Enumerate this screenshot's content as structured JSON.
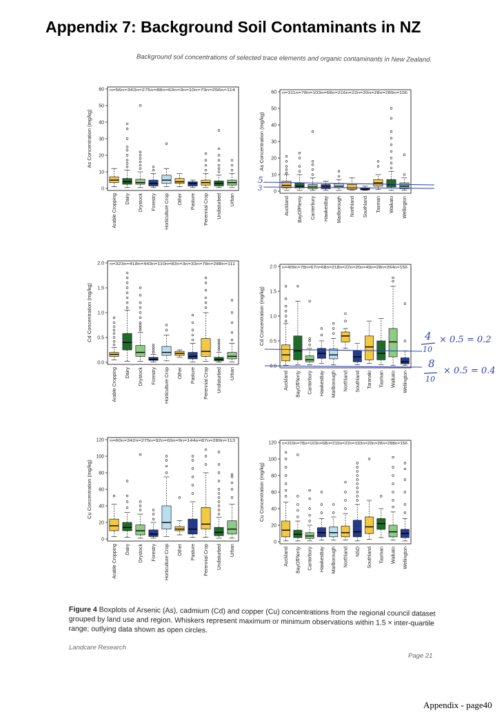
{
  "page": {
    "title": "Appendix 7: Background Soil Contaminants in NZ",
    "subtitle": "Background soil concentrations of selected trace elements and organic contaminants in New Zealand.",
    "caption_bold": "Figure 4",
    "caption_text": "Boxplots of Arsenic (As), cadmium (Cd) and copper (Cu) concentrations from the regional council dataset grouped by land use and region. Whiskers represent maximum or minimum observations within 1.5 × inter-quartile range; outlying data shown as open circles.",
    "footer_left": "Landcare Research",
    "footer_right": "Page 21",
    "page_number": "Appendix - page40"
  },
  "annotations": {
    "as_tick_a": "5",
    "as_tick_b": "3",
    "eq1_num": "4",
    "eq1_den": "10",
    "eq1_rest": "× 0.5 = 0.2",
    "eq2_num": "8",
    "eq2_den": "10",
    "eq2_rest": "× 0.5 = 0.4",
    "ink_color": "#2a3fb0"
  },
  "colors": {
    "yellow": "#f5c842",
    "darkgreen": "#1e6b2a",
    "lightgreen": "#8dcb86",
    "navy": "#243a8c",
    "lightblue": "#b9def0"
  },
  "chart_data": [
    {
      "id": "as_landuse",
      "type": "box",
      "ylabel": "As Concentration (mg/kg)",
      "ylim": [
        0,
        60
      ],
      "yticks": [
        0,
        10,
        20,
        30,
        40,
        50,
        60
      ],
      "n_labels": [
        "n=56",
        "n=343",
        "n=275",
        "n=88",
        "n=63",
        "n=3",
        "n=10",
        "n=79",
        "n=256",
        "n=114"
      ],
      "categories": [
        "Arable Cropping",
        "Dairy",
        "Drystock",
        "Forestry",
        "Horticulture Crop",
        "Other",
        "Pasture",
        "Perennial Crop",
        "Undisturbed",
        "Urban"
      ],
      "colors": [
        "yellow",
        "darkgreen",
        "lightgreen",
        "navy",
        "lightblue",
        "yellow",
        "navy",
        "yellow",
        "darkgreen",
        "lightgreen"
      ],
      "boxes": [
        {
          "lo": 1,
          "q1": 3.5,
          "med": 5,
          "q3": 7,
          "hi": 12,
          "out": []
        },
        {
          "lo": 0.5,
          "q1": 2.5,
          "med": 4,
          "q3": 6,
          "hi": 11,
          "out": [
            13,
            15,
            17,
            20,
            23,
            25,
            30,
            36,
            39
          ]
        },
        {
          "lo": 0.5,
          "q1": 2.5,
          "med": 3.5,
          "q3": 5.5,
          "hi": 10,
          "out": [
            12,
            14,
            16,
            18,
            20,
            22,
            50
          ]
        },
        {
          "lo": 0.5,
          "q1": 1.5,
          "med": 3,
          "q3": 5,
          "hi": 9,
          "out": [
            11,
            13
          ]
        },
        {
          "lo": 1,
          "q1": 3,
          "med": 5,
          "q3": 8,
          "hi": 12,
          "out": [
            27
          ]
        },
        {
          "lo": 1,
          "q1": 3,
          "med": 4,
          "q3": 6,
          "hi": 9,
          "out": []
        },
        {
          "lo": 0.5,
          "q1": 1.5,
          "med": 3,
          "q3": 4,
          "hi": 5,
          "out": []
        },
        {
          "lo": 0.5,
          "q1": 2,
          "med": 3.5,
          "q3": 5,
          "hi": 9,
          "out": [
            11,
            14,
            17,
            21
          ]
        },
        {
          "lo": 0.5,
          "q1": 1.5,
          "med": 3,
          "q3": 4.5,
          "hi": 8,
          "out": [
            10,
            12,
            14,
            17,
            20,
            24,
            35
          ]
        },
        {
          "lo": 0.5,
          "q1": 2,
          "med": 3.5,
          "q3": 5,
          "hi": 9,
          "out": [
            11,
            14,
            17
          ]
        }
      ]
    },
    {
      "id": "as_region",
      "type": "box",
      "ylabel": "As Concentration (mg/kg)",
      "ylim": [
        0,
        60
      ],
      "yticks": [
        0,
        10,
        20,
        30,
        40,
        50,
        60
      ],
      "n_labels": [
        "n=311",
        "n=78",
        "n=103",
        "n=68",
        "n=216",
        "n=22",
        "n=20",
        "n=28",
        "n=289",
        "n=156"
      ],
      "categories": [
        "Auckland",
        "BayOfPlenty",
        "Canterbury",
        "HawkesBay",
        "Marlborough",
        "Northland",
        "Southland",
        "Tasman",
        "Waikato",
        "Wellington"
      ],
      "colors": [
        "yellow",
        "darkgreen",
        "lightgreen",
        "navy",
        "lightblue",
        "yellow",
        "navy",
        "yellow",
        "darkgreen",
        "lightgreen"
      ],
      "boxes": [
        {
          "lo": 0.5,
          "q1": 2,
          "med": 3.5,
          "q3": 6,
          "hi": 10,
          "out": [
            11,
            13,
            15,
            18,
            21
          ]
        },
        {
          "lo": 0.5,
          "q1": 2,
          "med": 3,
          "q3": 5,
          "hi": 10,
          "out": [
            12,
            15,
            20,
            23
          ]
        },
        {
          "lo": 0.5,
          "q1": 1.5,
          "med": 2.5,
          "q3": 4,
          "hi": 8,
          "out": [
            10,
            13,
            16,
            18,
            36
          ]
        },
        {
          "lo": 0.5,
          "q1": 1.5,
          "med": 2.5,
          "q3": 4,
          "hi": 6,
          "out": []
        },
        {
          "lo": 0.5,
          "q1": 2,
          "med": 3,
          "q3": 4.5,
          "hi": 7,
          "out": [
            9,
            12
          ]
        },
        {
          "lo": 0.5,
          "q1": 1,
          "med": 2,
          "q3": 4,
          "hi": 8,
          "out": []
        },
        {
          "lo": 0.5,
          "q1": 0.8,
          "med": 1.2,
          "q3": 2,
          "hi": 3,
          "out": []
        },
        {
          "lo": 1,
          "q1": 3,
          "med": 5,
          "q3": 7,
          "hi": 10,
          "out": [
            15,
            18
          ]
        },
        {
          "lo": 0.5,
          "q1": 2.5,
          "med": 4,
          "q3": 7,
          "hi": 12,
          "out": [
            14,
            17,
            20,
            24,
            28,
            32,
            36,
            44,
            50
          ]
        },
        {
          "lo": 0.5,
          "q1": 1.5,
          "med": 3,
          "q3": 5,
          "hi": 8,
          "out": [
            10,
            22
          ]
        }
      ]
    },
    {
      "id": "cd_landuse",
      "type": "box",
      "ylabel": "Cd Concentration (mg/kg)",
      "ylim": [
        0,
        2.0
      ],
      "yticks": [
        0.0,
        0.5,
        1.0,
        1.5,
        2.0
      ],
      "n_labels": [
        "n=323",
        "n=418",
        "n=443",
        "n=110",
        "n=83",
        "n=3",
        "n=33",
        "n=78",
        "n=288",
        "n=111"
      ],
      "categories": [
        "Arable Cropping",
        "Dairy",
        "Drystock",
        "Forestry",
        "Horticulture Crop",
        "Other",
        "Pasture",
        "Perennial Crop",
        "Undisturbed",
        "Urban"
      ],
      "colors": [
        "yellow",
        "darkgreen",
        "lightgreen",
        "navy",
        "lightblue",
        "yellow",
        "navy",
        "yellow",
        "darkgreen",
        "lightgreen"
      ],
      "boxes": [
        {
          "lo": 0.05,
          "q1": 0.12,
          "med": 0.16,
          "q3": 0.2,
          "hi": 0.3,
          "out": [
            0.35,
            0.42,
            0.5,
            0.58,
            0.65,
            0.72,
            0.8,
            0.9
          ]
        },
        {
          "lo": 0.02,
          "q1": 0.25,
          "med": 0.4,
          "q3": 0.58,
          "hi": 1.05,
          "out": [
            1.1,
            1.2,
            1.3,
            1.4,
            1.5,
            1.6,
            1.7,
            1.8
          ]
        },
        {
          "lo": 0.02,
          "q1": 0.12,
          "med": 0.2,
          "q3": 0.34,
          "hi": 0.6,
          "out": [
            0.65,
            0.7,
            0.75,
            0.8,
            0.9,
            1.0,
            1.1,
            1.2,
            1.35,
            1.5
          ]
        },
        {
          "lo": 0.01,
          "q1": 0.04,
          "med": 0.06,
          "q3": 0.1,
          "hi": 0.16,
          "out": [
            0.2,
            0.25,
            0.3,
            0.35
          ]
        },
        {
          "lo": 0.03,
          "q1": 0.14,
          "med": 0.2,
          "q3": 0.32,
          "hi": 0.55,
          "out": [
            0.65,
            0.75
          ]
        },
        {
          "lo": 0.1,
          "q1": 0.14,
          "med": 0.18,
          "q3": 0.22,
          "hi": 0.25,
          "out": []
        },
        {
          "lo": 0.01,
          "q1": 0.07,
          "med": 0.12,
          "q3": 0.2,
          "hi": 0.38,
          "out": [
            0.45,
            0.55,
            0.65,
            0.8,
            0.95
          ]
        },
        {
          "lo": 0.02,
          "q1": 0.12,
          "med": 0.22,
          "q3": 0.48,
          "hi": 1.0,
          "out": [
            1.1,
            1.2,
            1.3,
            1.45,
            1.6,
            1.7
          ]
        },
        {
          "lo": 0.005,
          "q1": 0.03,
          "med": 0.06,
          "q3": 0.1,
          "hi": 0.2,
          "out": [
            0.25,
            0.3,
            0.35,
            0.4,
            0.45
          ]
        },
        {
          "lo": 0.01,
          "q1": 0.07,
          "med": 0.12,
          "q3": 0.2,
          "hi": 0.38,
          "out": [
            0.45,
            0.6,
            0.8,
            1.0,
            1.25
          ]
        }
      ]
    },
    {
      "id": "cd_region",
      "type": "box",
      "ylabel": "Cd Concentration (mg/kg)",
      "ylim": [
        0,
        2.0
      ],
      "yticks": [
        0.0,
        0.5,
        1.0,
        1.5,
        2.0
      ],
      "n_labels": [
        "n=409",
        "n=78",
        "n=67",
        "n=68",
        "n=218",
        "n=22",
        "n=20",
        "n=49",
        "n=28",
        "n=264",
        "n=156"
      ],
      "categories": [
        "Auckland",
        "BayOfPlenty",
        "Canterbury",
        "HawkesBay",
        "Marlborough",
        "Northland",
        "Southland",
        "Taranaki",
        "Tasman",
        "Waikato",
        "Wellington"
      ],
      "colors": [
        "yellow",
        "darkgreen",
        "lightgreen",
        "navy",
        "lightblue",
        "yellow",
        "navy",
        "yellow",
        "darkgreen",
        "lightgreen",
        "navy"
      ],
      "boxes": [
        {
          "lo": 0.01,
          "q1": 0.1,
          "med": 0.22,
          "q3": 0.42,
          "hi": 0.85,
          "out": [
            0.9,
            1.0,
            1.1,
            1.2,
            1.35,
            1.6
          ]
        },
        {
          "lo": 0.02,
          "q1": 0.12,
          "med": 0.3,
          "q3": 0.6,
          "hi": 1.3,
          "out": [
            1.6
          ]
        },
        {
          "lo": 0.02,
          "q1": 0.08,
          "med": 0.12,
          "q3": 0.2,
          "hi": 0.35,
          "out": [
            0.42,
            0.5,
            0.55,
            1.3
          ]
        },
        {
          "lo": 0.05,
          "q1": 0.15,
          "med": 0.25,
          "q3": 0.35,
          "hi": 0.5,
          "out": [
            0.62,
            0.75
          ]
        },
        {
          "lo": 0.02,
          "q1": 0.14,
          "med": 0.22,
          "q3": 0.34,
          "hi": 0.55,
          "out": [
            0.65,
            0.75,
            0.85
          ]
        },
        {
          "lo": 0.35,
          "q1": 0.48,
          "med": 0.6,
          "q3": 0.68,
          "hi": 0.75,
          "out": [
            0.9,
            1.05
          ]
        },
        {
          "lo": 0.02,
          "q1": 0.08,
          "med": 0.18,
          "q3": 0.3,
          "hi": 0.45,
          "out": []
        },
        {
          "lo": 0.05,
          "q1": 0.12,
          "med": 0.38,
          "q3": 0.6,
          "hi": 0.9,
          "out": []
        },
        {
          "lo": 0.02,
          "q1": 0.12,
          "med": 0.25,
          "q3": 0.5,
          "hi": 0.95,
          "out": []
        },
        {
          "lo": 0.01,
          "q1": 0.18,
          "med": 0.48,
          "q3": 0.75,
          "hi": 1.6,
          "out": [
            1.7,
            1.77
          ]
        },
        {
          "lo": 0.01,
          "q1": 0.04,
          "med": 0.08,
          "q3": 0.16,
          "hi": 0.3,
          "out": [
            0.5,
            1.25
          ]
        }
      ]
    },
    {
      "id": "cu_landuse",
      "type": "box",
      "ylabel": "Cu Concentration (mg/kg)",
      "ylim": [
        0,
        120
      ],
      "yticks": [
        0,
        20,
        40,
        60,
        80,
        100,
        120
      ],
      "n_labels": [
        "n=60",
        "n=342",
        "n=275",
        "n=92",
        "n=69",
        "n=9",
        "n=144",
        "n=87",
        "n=289",
        "n=113"
      ],
      "categories": [
        "Arable Cropping",
        "Dairy",
        "Drystock",
        "Forestry",
        "Horticulture Crop",
        "Other",
        "Pasture",
        "Perennial Crop",
        "Undisturbed",
        "Urban"
      ],
      "colors": [
        "yellow",
        "darkgreen",
        "lightgreen",
        "navy",
        "lightblue",
        "yellow",
        "navy",
        "yellow",
        "darkgreen",
        "lightgreen"
      ],
      "boxes": [
        {
          "lo": 3,
          "q1": 10,
          "med": 16,
          "q3": 24,
          "hi": 42,
          "out": [
            52
          ]
        },
        {
          "lo": 2,
          "q1": 10,
          "med": 14,
          "q3": 20,
          "hi": 32,
          "out": [
            38,
            45,
            52,
            70
          ]
        },
        {
          "lo": 1,
          "q1": 5,
          "med": 10,
          "q3": 17,
          "hi": 30,
          "out": [
            35,
            40,
            45,
            102
          ]
        },
        {
          "lo": 1,
          "q1": 3,
          "med": 6,
          "q3": 11,
          "hi": 20,
          "out": [
            24,
            30,
            35
          ]
        },
        {
          "lo": 3,
          "q1": 12,
          "med": 20,
          "q3": 40,
          "hi": 75,
          "out": [
            80,
            88,
            95,
            100
          ]
        },
        {
          "lo": 5,
          "q1": 10,
          "med": 12,
          "q3": 15,
          "hi": 22,
          "out": [
            50
          ]
        },
        {
          "lo": 2,
          "q1": 6,
          "med": 12,
          "q3": 24,
          "hi": 45,
          "out": [
            55,
            65,
            75,
            85,
            95,
            100
          ]
        },
        {
          "lo": 2,
          "q1": 12,
          "med": 18,
          "q3": 38,
          "hi": 80,
          "out": [
            90,
            100,
            108
          ]
        },
        {
          "lo": 1,
          "q1": 4,
          "med": 8,
          "q3": 14,
          "hi": 26,
          "out": [
            30,
            35,
            40,
            45,
            50,
            55,
            60,
            70,
            80,
            90,
            105
          ]
        },
        {
          "lo": 1,
          "q1": 6,
          "med": 12,
          "q3": 22,
          "hi": 42,
          "out": [
            50,
            60,
            68,
            75,
            78
          ]
        }
      ]
    },
    {
      "id": "cu_region",
      "type": "box",
      "ylabel": "Cu Concentration (mg/kg)",
      "ylim": [
        0,
        120
      ],
      "yticks": [
        0,
        20,
        40,
        60,
        80,
        100,
        120
      ],
      "n_labels": [
        "n=310",
        "n=78",
        "n=103",
        "n=68",
        "n=216",
        "n=22",
        "n=193",
        "n=20",
        "n=28",
        "n=288",
        "n=156"
      ],
      "categories": [
        "Auckland",
        "BayOfPlenty",
        "Canterbury",
        "HawkesBay",
        "Marlborough",
        "Northland",
        "NSD",
        "Southland",
        "Tasman",
        "Waikato",
        "Wellington"
      ],
      "colors": [
        "yellow",
        "darkgreen",
        "lightgreen",
        "navy",
        "lightblue",
        "yellow",
        "navy",
        "yellow",
        "darkgreen",
        "lightgreen",
        "navy"
      ],
      "boxes": [
        {
          "lo": 1,
          "q1": 6,
          "med": 14,
          "q3": 25,
          "hi": 48,
          "out": [
            55,
            62,
            70,
            80,
            90,
            100,
            108
          ]
        },
        {
          "lo": 1,
          "q1": 5,
          "med": 9,
          "q3": 14,
          "hi": 25,
          "out": [
            30,
            38,
            45,
            55,
            105
          ]
        },
        {
          "lo": 1,
          "q1": 4,
          "med": 7,
          "q3": 11,
          "hi": 20,
          "out": [
            25,
            32,
            40,
            52,
            62
          ]
        },
        {
          "lo": 2,
          "q1": 6,
          "med": 11,
          "q3": 17,
          "hi": 28,
          "out": [
            35,
            45,
            60
          ]
        },
        {
          "lo": 2,
          "q1": 6,
          "med": 11,
          "q3": 18,
          "hi": 30,
          "out": [
            35,
            45
          ]
        },
        {
          "lo": 2,
          "q1": 6,
          "med": 11,
          "q3": 19,
          "hi": 34,
          "out": [
            40,
            50,
            60,
            72
          ]
        },
        {
          "lo": 1,
          "q1": 6,
          "med": 12,
          "q3": 26,
          "hi": 45,
          "out": [
            50,
            55,
            60,
            65,
            70,
            75,
            80,
            85,
            90,
            95
          ]
        },
        {
          "lo": 3,
          "q1": 10,
          "med": 18,
          "q3": 30,
          "hi": 50,
          "out": [
            100
          ]
        },
        {
          "lo": 5,
          "q1": 15,
          "med": 22,
          "q3": 28,
          "hi": 40,
          "out": [
            55
          ]
        },
        {
          "lo": 2,
          "q1": 6,
          "med": 12,
          "q3": 20,
          "hi": 36,
          "out": [
            42,
            50,
            60,
            70,
            80,
            90,
            102
          ]
        },
        {
          "lo": 1,
          "q1": 5,
          "med": 10,
          "q3": 15,
          "hi": 28,
          "out": [
            35,
            45,
            60,
            75,
            88,
            95
          ]
        }
      ]
    }
  ]
}
